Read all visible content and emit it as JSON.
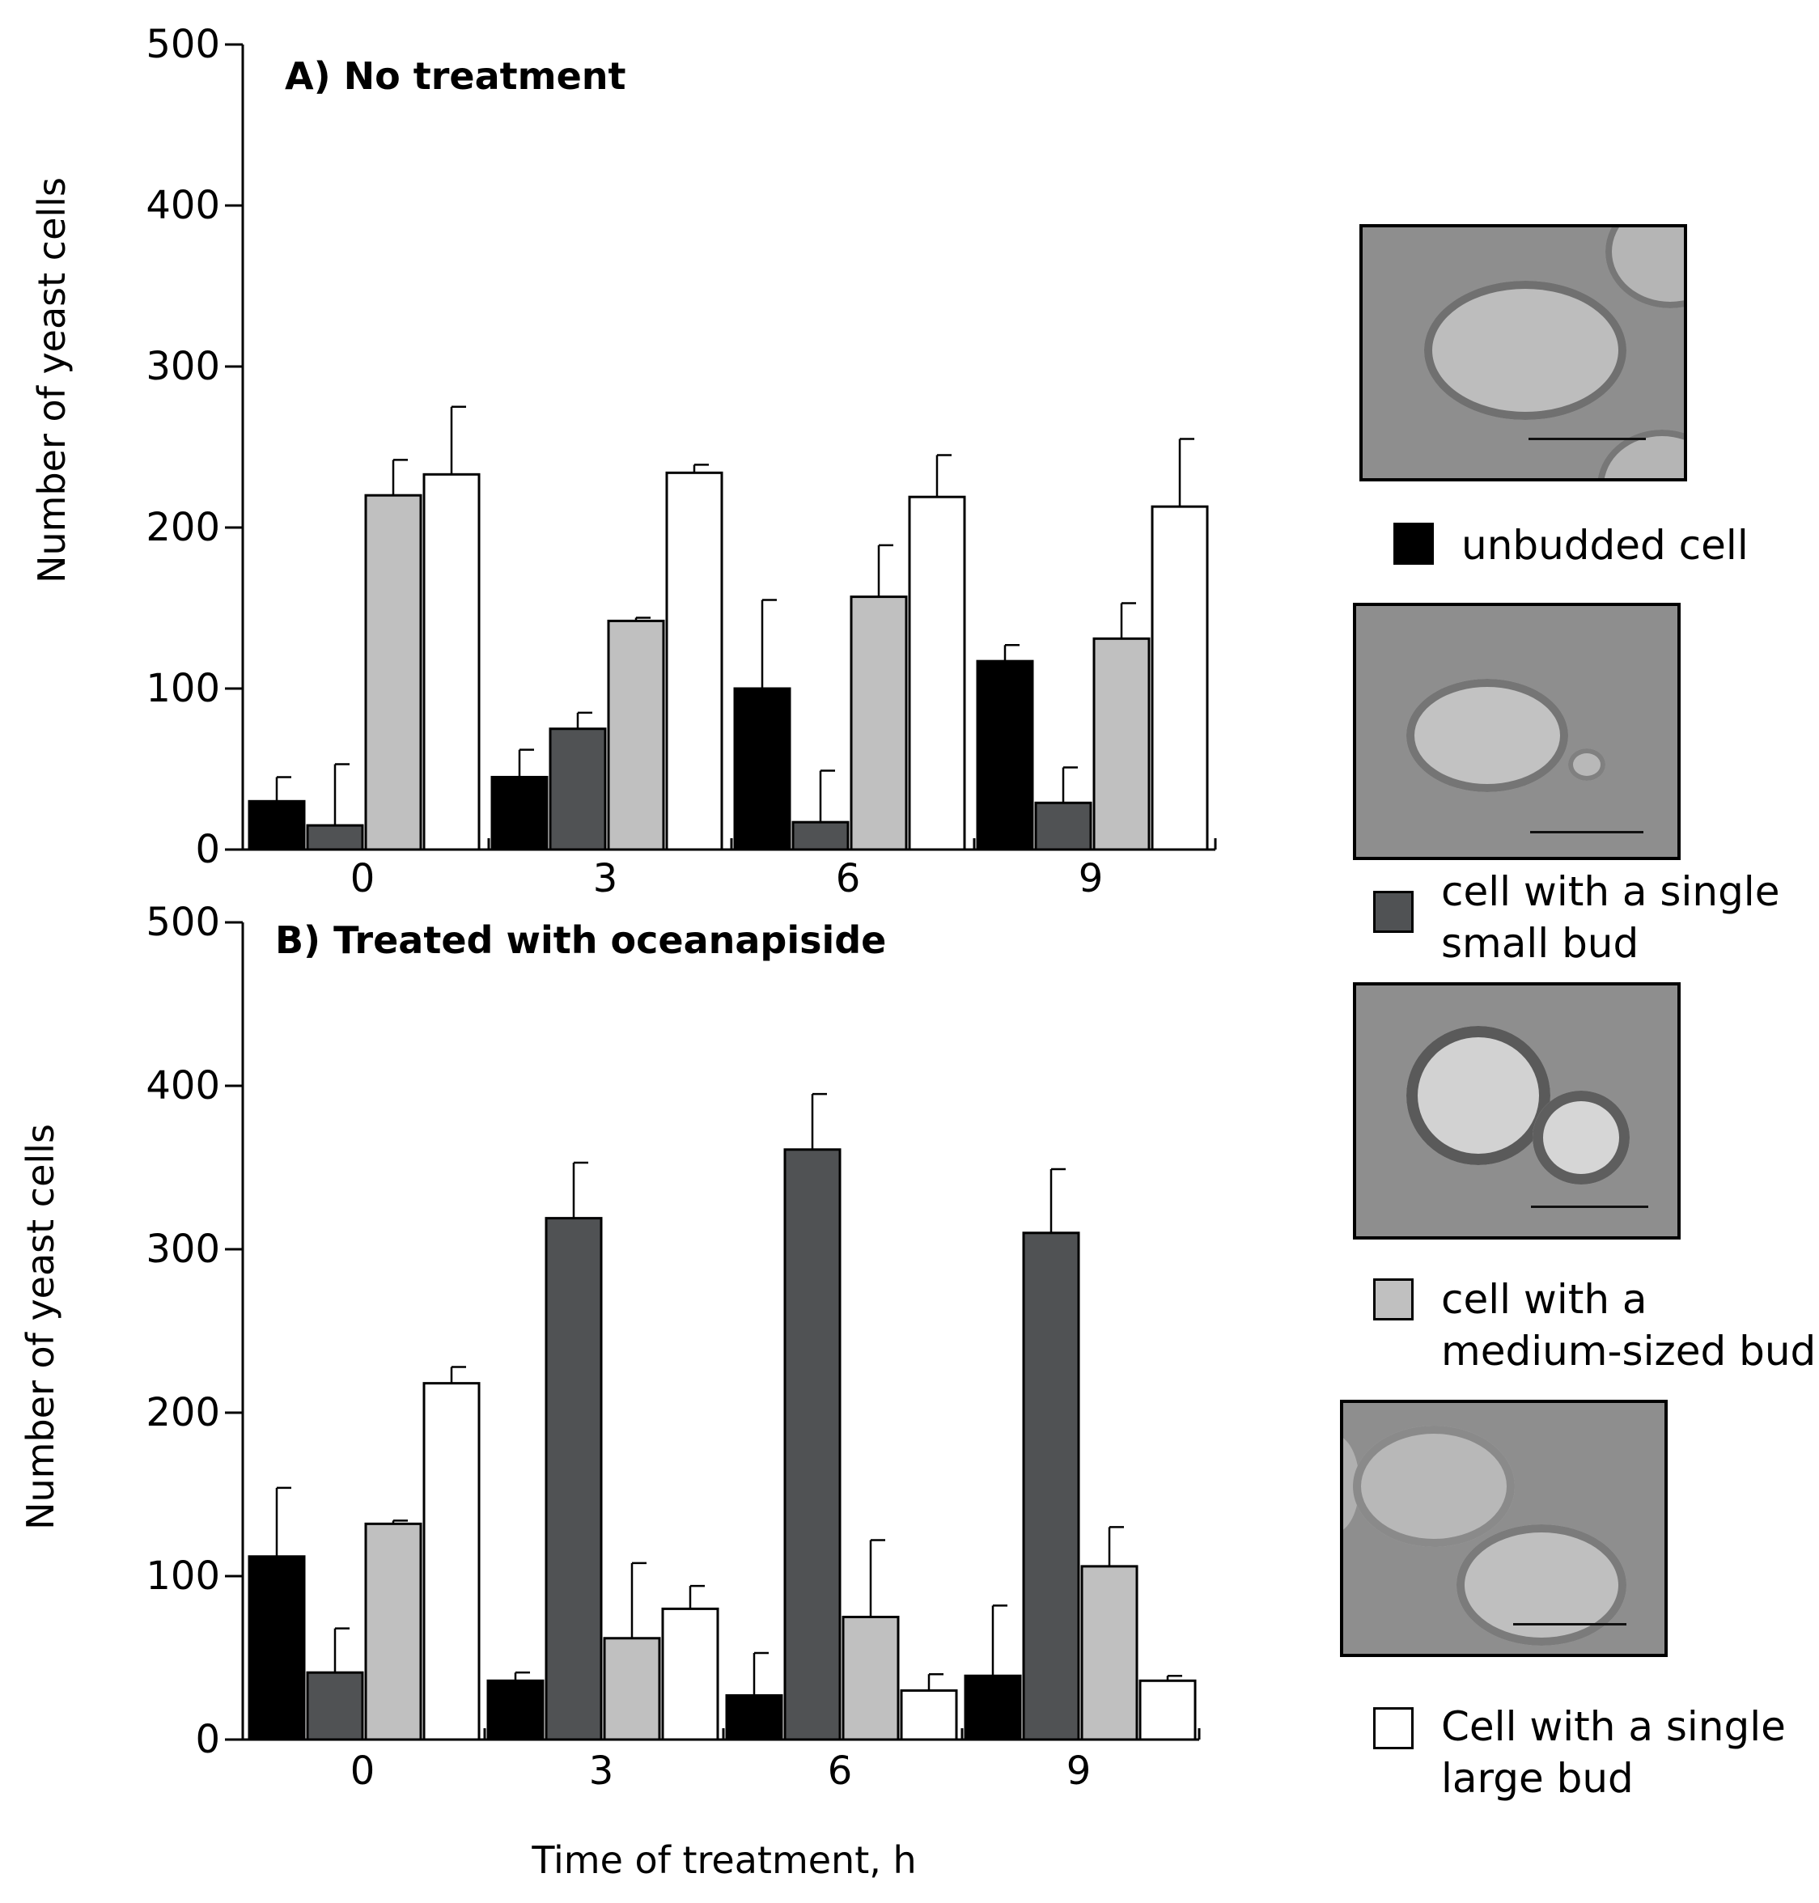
{
  "chart_data": [
    {
      "type": "bar",
      "title": "A) No treatment",
      "xlabel": "",
      "ylabel": "Number of yeast cells",
      "ylim": [
        0,
        500
      ],
      "yticks": [
        "0",
        "100",
        "200",
        "300",
        "400",
        "500"
      ],
      "categories": [
        "0",
        "3",
        "6",
        "9"
      ],
      "series": [
        {
          "name": "unbudded cell",
          "color": "#000000",
          "values": [
            30,
            45,
            100,
            117
          ],
          "errors": [
            15,
            17,
            55,
            10
          ]
        },
        {
          "name": "cell with a single small bud",
          "color": "#505254",
          "values": [
            15,
            75,
            17,
            29
          ],
          "errors": [
            38,
            10,
            32,
            22
          ]
        },
        {
          "name": "cell with a medium-sized bud",
          "color": "#c0c0c0",
          "values": [
            220,
            142,
            157,
            131
          ],
          "errors": [
            22,
            2,
            32,
            22
          ]
        },
        {
          "name": "Cell with a single large bud",
          "color": "#ffffff",
          "values": [
            233,
            234,
            219,
            213
          ],
          "errors": [
            42,
            5,
            26,
            42
          ]
        }
      ]
    },
    {
      "type": "bar",
      "title": "B)  Treated with  oceanapiside",
      "xlabel": "Time of treatment, h",
      "ylabel": "Number of yeast cells",
      "ylim": [
        0,
        500
      ],
      "yticks": [
        "0",
        "100",
        "200",
        "300",
        "400",
        "500"
      ],
      "categories": [
        "0",
        "3",
        "6",
        "9"
      ],
      "series": [
        {
          "name": "unbudded cell",
          "color": "#000000",
          "values": [
            112,
            36,
            27,
            39
          ],
          "errors": [
            42,
            5,
            26,
            43
          ]
        },
        {
          "name": "cell with a single small bud",
          "color": "#505254",
          "values": [
            41,
            319,
            361,
            310
          ],
          "errors": [
            27,
            34,
            34,
            39
          ]
        },
        {
          "name": "cell with a medium-sized bud",
          "color": "#c0c0c0",
          "values": [
            132,
            62,
            75,
            106
          ],
          "errors": [
            2,
            46,
            47,
            24
          ]
        },
        {
          "name": "Cell with a single large bud",
          "color": "#ffffff",
          "values": [
            218,
            80,
            30,
            36
          ],
          "errors": [
            10,
            14,
            10,
            3
          ]
        }
      ]
    }
  ],
  "legend": [
    {
      "label": "unbudded cell",
      "color": "#000000"
    },
    {
      "label": "cell with a single small bud",
      "color": "#505254"
    },
    {
      "label": "cell with a medium-sized bud",
      "color": "#c0c0c0"
    },
    {
      "label": "Cell with a single large bud",
      "color": "#ffffff"
    }
  ],
  "legend_lines": [
    [
      "unbudded cell"
    ],
    [
      "cell with a single",
      "small bud"
    ],
    [
      "cell with a",
      "medium-sized bud"
    ],
    [
      "Cell with a single",
      "large bud"
    ]
  ]
}
